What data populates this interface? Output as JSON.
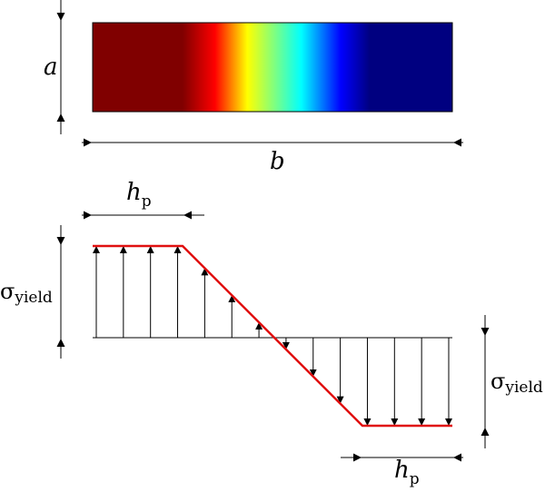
{
  "labels": {
    "a": "a",
    "b": "b",
    "h": "h",
    "p_sub": "p",
    "sigma": "σ",
    "yield_sub": "yield"
  },
  "colors": {
    "stress_line": "#e01010",
    "arrow": "#000000",
    "gradient": [
      "#800000",
      "#800000",
      "#ff0000",
      "#ffff00",
      "#00ffff",
      "#0000ff",
      "#000080",
      "#000080"
    ]
  },
  "gradient_stops": [
    0,
    0.25,
    0.34,
    0.43,
    0.58,
    0.69,
    0.77,
    1
  ],
  "stress_profile": {
    "plateau_fraction": 0.25,
    "arrow_count": 14
  }
}
